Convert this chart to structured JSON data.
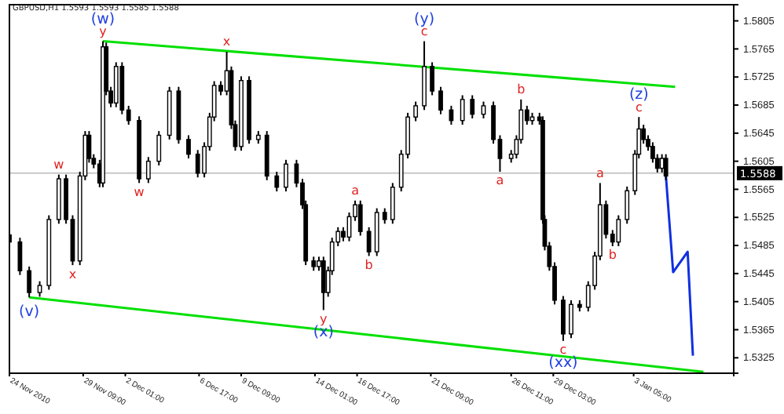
{
  "chart_data": {
    "type": "candlestick",
    "title": "GBPUSD,H1 1.5593 1.5593 1.5585 1.5588",
    "color": "#000000",
    "xlim": [
      "2010-11-24T17:00",
      "2011-01-09T13:00"
    ],
    "ylim": [
      1.5303,
      1.5828
    ],
    "xticks": [
      {
        "value": "2010-11-24T17:00",
        "label": "24 Nov 2010"
      },
      {
        "value": "2010-11-29T09:00",
        "label": "29 Nov 09:00"
      },
      {
        "value": "2010-12-02T01:00",
        "label": "2 Dec 01:00"
      },
      {
        "value": "2010-12-06T17:00",
        "label": "6 Dec 17:00"
      },
      {
        "value": "2010-12-09T09:00",
        "label": "9 Dec 09:00"
      },
      {
        "value": "2010-12-14T01:00",
        "label": "14 Dec 01:00"
      },
      {
        "value": "2010-12-16T17:00",
        "label": "16 Dec 17:00"
      },
      {
        "value": "2010-12-21T09:00",
        "label": "21 Dec 09:00"
      },
      {
        "value": "2010-12-26T11:00",
        "label": "26 Dec 11:00"
      },
      {
        "value": "2010-12-29T03:00",
        "label": "29 Dec 03:00"
      },
      {
        "value": "2011-01-03T05:00",
        "label": "3 Jan 05:00"
      }
    ],
    "yticks": [
      1.5325,
      1.5365,
      1.5405,
      1.5445,
      1.5485,
      1.5525,
      1.5565,
      1.5605,
      1.5645,
      1.5685,
      1.5725,
      1.5765,
      1.5805
    ],
    "x": [
      "2010-11-24T17:00",
      "2010-11-25T09:00",
      "2010-11-25T23:00",
      "2010-11-26T15:00",
      "2010-11-27T05:00",
      "2010-11-27T20:00",
      "2010-11-28T07:00",
      "2010-11-28T17:00",
      "2010-11-29T04:00",
      "2010-11-29T12:00",
      "2010-11-29T18:00",
      "2010-11-30T01:00",
      "2010-11-30T10:00",
      "2010-11-30T15:00",
      "2010-11-30T20:00",
      "2010-12-01T03:00",
      "2010-12-01T11:00",
      "2010-12-01T20:00",
      "2010-12-02T06:00",
      "2010-12-02T22:00",
      "2010-12-03T12:00",
      "2010-12-04T04:00",
      "2010-12-04T20:00",
      "2010-12-05T10:00",
      "2010-12-06T01:00",
      "2010-12-06T15:00",
      "2010-12-07T01:00",
      "2010-12-07T09:00",
      "2010-12-07T16:00",
      "2010-12-08T02:00",
      "2010-12-08T11:00",
      "2010-12-08T18:00",
      "2010-12-09T00:00",
      "2010-12-09T09:00",
      "2010-12-09T21:00",
      "2010-12-10T11:00",
      "2010-12-11T00:00",
      "2010-12-11T15:00",
      "2010-12-12T05:00",
      "2010-12-12T21:00",
      "2010-12-13T06:00",
      "2010-12-13T11:00",
      "2010-12-13T23:00",
      "2010-12-14T07:00",
      "2010-12-14T14:00",
      "2010-12-14T21:00",
      "2010-12-15T03:00",
      "2010-12-15T12:00",
      "2010-12-15T20:00",
      "2010-12-16T05:00",
      "2010-12-16T14:00",
      "2010-12-16T22:00",
      "2010-12-17T11:00",
      "2010-12-17T23:00",
      "2010-12-18T11:00",
      "2010-12-18T23:00",
      "2010-12-19T12:00",
      "2010-12-19T22:00",
      "2010-12-20T10:00",
      "2010-12-20T23:00",
      "2010-12-21T11:00",
      "2010-12-22T00:00",
      "2010-12-22T16:00",
      "2010-12-23T09:00",
      "2010-12-24T00:00",
      "2010-12-24T17:00",
      "2010-12-25T08:00",
      "2010-12-25T18:00",
      "2010-12-26T11:00",
      "2010-12-26T19:00",
      "2010-12-27T02:00",
      "2010-12-27T11:00",
      "2010-12-27T19:00",
      "2010-12-28T06:00",
      "2010-12-28T11:00",
      "2010-12-28T14:00",
      "2010-12-28T21:00",
      "2010-12-29T05:00",
      "2010-12-29T18:00",
      "2010-12-30T06:00",
      "2010-12-30T19:00",
      "2010-12-31T08:00",
      "2010-12-31T18:00",
      "2011-01-01T02:00",
      "2011-01-01T11:00",
      "2011-01-01T21:00",
      "2011-01-02T06:00",
      "2011-01-02T19:00",
      "2011-01-03T07:00",
      "2011-01-03T13:00",
      "2011-01-03T20:00",
      "2011-01-04T03:00",
      "2011-01-04T10:00",
      "2011-01-04T17:00",
      "2011-01-05T00:00",
      "2011-01-05T06:00"
    ],
    "ohlc": [
      [
        1.55,
        1.5506,
        1.5484,
        1.549
      ],
      [
        1.549,
        1.5496,
        1.5443,
        1.5449
      ],
      [
        1.5449,
        1.5455,
        1.5411,
        1.5418
      ],
      [
        1.5418,
        1.5434,
        1.5412,
        1.5428
      ],
      [
        1.5428,
        1.5528,
        1.5422,
        1.5522
      ],
      [
        1.5522,
        1.5586,
        1.5516,
        1.558
      ],
      [
        1.558,
        1.5586,
        1.5516,
        1.5522
      ],
      [
        1.5522,
        1.5528,
        1.5457,
        1.5463
      ],
      [
        1.5463,
        1.559,
        1.5457,
        1.5584
      ],
      [
        1.5584,
        1.5648,
        1.5578,
        1.5642
      ],
      [
        1.5642,
        1.5648,
        1.5603,
        1.5609
      ],
      [
        1.5609,
        1.5615,
        1.5595,
        1.5601
      ],
      [
        1.5601,
        1.5607,
        1.5568,
        1.5574
      ],
      [
        1.5574,
        1.5776,
        1.5568,
        1.5768
      ],
      [
        1.5768,
        1.5774,
        1.5699,
        1.5705
      ],
      [
        1.5705,
        1.5711,
        1.5682,
        1.5688
      ],
      [
        1.5688,
        1.5746,
        1.5682,
        1.574
      ],
      [
        1.574,
        1.5746,
        1.5672,
        1.5678
      ],
      [
        1.5678,
        1.5684,
        1.5657,
        1.5663
      ],
      [
        1.5663,
        1.5669,
        1.5574,
        1.558
      ],
      [
        1.558,
        1.5611,
        1.5574,
        1.5605
      ],
      [
        1.5605,
        1.5648,
        1.5599,
        1.5642
      ],
      [
        1.5642,
        1.5711,
        1.5636,
        1.5705
      ],
      [
        1.5705,
        1.5711,
        1.563,
        1.5636
      ],
      [
        1.5636,
        1.5642,
        1.5609,
        1.5615
      ],
      [
        1.5615,
        1.5621,
        1.5582,
        1.5588
      ],
      [
        1.5588,
        1.5632,
        1.5582,
        1.5626
      ],
      [
        1.5626,
        1.5674,
        1.562,
        1.5668
      ],
      [
        1.5668,
        1.5719,
        1.5662,
        1.5713
      ],
      [
        1.5713,
        1.5719,
        1.5699,
        1.5705
      ],
      [
        1.5705,
        1.5761,
        1.5699,
        1.5734
      ],
      [
        1.5734,
        1.574,
        1.5651,
        1.5657
      ],
      [
        1.5657,
        1.5663,
        1.562,
        1.5626
      ],
      [
        1.5626,
        1.5726,
        1.562,
        1.572
      ],
      [
        1.572,
        1.5726,
        1.563,
        1.5636
      ],
      [
        1.5636,
        1.5648,
        1.563,
        1.5642
      ],
      [
        1.5642,
        1.5648,
        1.5578,
        1.5584
      ],
      [
        1.5584,
        1.559,
        1.5562,
        1.5568
      ],
      [
        1.5568,
        1.5607,
        1.5562,
        1.5601
      ],
      [
        1.5601,
        1.5607,
        1.5568,
        1.5574
      ],
      [
        1.5574,
        1.558,
        1.5537,
        1.5543
      ],
      [
        1.5543,
        1.5549,
        1.5457,
        1.5463
      ],
      [
        1.5463,
        1.5469,
        1.5449,
        1.5455
      ],
      [
        1.5455,
        1.5469,
        1.5449,
        1.5463
      ],
      [
        1.5463,
        1.5469,
        1.5393,
        1.5418
      ],
      [
        1.5418,
        1.5455,
        1.5412,
        1.5449
      ],
      [
        1.5449,
        1.5496,
        1.5443,
        1.549
      ],
      [
        1.549,
        1.5511,
        1.5484,
        1.5505
      ],
      [
        1.5505,
        1.5511,
        1.5491,
        1.5497
      ],
      [
        1.5497,
        1.5532,
        1.5491,
        1.5526
      ],
      [
        1.5526,
        1.5549,
        1.552,
        1.5543
      ],
      [
        1.5543,
        1.5549,
        1.5499,
        1.5505
      ],
      [
        1.5505,
        1.5511,
        1.547,
        1.5476
      ],
      [
        1.5476,
        1.5538,
        1.547,
        1.5532
      ],
      [
        1.5532,
        1.5538,
        1.5516,
        1.5522
      ],
      [
        1.5522,
        1.5574,
        1.5516,
        1.5568
      ],
      [
        1.5568,
        1.5621,
        1.5562,
        1.5615
      ],
      [
        1.5615,
        1.5674,
        1.5609,
        1.5668
      ],
      [
        1.5668,
        1.569,
        1.5662,
        1.5684
      ],
      [
        1.5684,
        1.5776,
        1.5678,
        1.574
      ],
      [
        1.574,
        1.5746,
        1.5699,
        1.5705
      ],
      [
        1.5705,
        1.5711,
        1.5672,
        1.5678
      ],
      [
        1.5678,
        1.5684,
        1.5657,
        1.5663
      ],
      [
        1.5663,
        1.5699,
        1.5657,
        1.5693
      ],
      [
        1.5693,
        1.5699,
        1.5666,
        1.5672
      ],
      [
        1.5672,
        1.569,
        1.5666,
        1.5684
      ],
      [
        1.5684,
        1.569,
        1.563,
        1.5636
      ],
      [
        1.5636,
        1.5642,
        1.559,
        1.5609
      ],
      [
        1.5609,
        1.5621,
        1.5603,
        1.5615
      ],
      [
        1.5615,
        1.5642,
        1.5609,
        1.5636
      ],
      [
        1.5636,
        1.5693,
        1.563,
        1.5678
      ],
      [
        1.5678,
        1.5684,
        1.5657,
        1.5663
      ],
      [
        1.5663,
        1.5674,
        1.5657,
        1.5668
      ],
      [
        1.5668,
        1.5674,
        1.5657,
        1.5663
      ],
      [
        1.5663,
        1.5669,
        1.5516,
        1.5522
      ],
      [
        1.5522,
        1.5528,
        1.5478,
        1.5484
      ],
      [
        1.5484,
        1.549,
        1.5449,
        1.5455
      ],
      [
        1.5455,
        1.5461,
        1.5401,
        1.5407
      ],
      [
        1.5407,
        1.5413,
        1.5349,
        1.5359
      ],
      [
        1.5359,
        1.5407,
        1.5353,
        1.5401
      ],
      [
        1.5401,
        1.5407,
        1.5391,
        1.5397
      ],
      [
        1.5397,
        1.5434,
        1.5391,
        1.5428
      ],
      [
        1.5428,
        1.5476,
        1.5422,
        1.547
      ],
      [
        1.547,
        1.5574,
        1.5464,
        1.5543
      ],
      [
        1.5543,
        1.5549,
        1.5495,
        1.5501
      ],
      [
        1.5501,
        1.5507,
        1.5484,
        1.549
      ],
      [
        1.549,
        1.5528,
        1.5484,
        1.5522
      ],
      [
        1.5522,
        1.5569,
        1.5516,
        1.5563
      ],
      [
        1.5563,
        1.5621,
        1.5557,
        1.5615
      ],
      [
        1.5615,
        1.5668,
        1.5609,
        1.5651
      ],
      [
        1.5651,
        1.5657,
        1.563,
        1.5636
      ],
      [
        1.5636,
        1.5642,
        1.562,
        1.5626
      ],
      [
        1.5626,
        1.5632,
        1.5603,
        1.5609
      ],
      [
        1.5609,
        1.5615,
        1.5589,
        1.5595
      ],
      [
        1.5595,
        1.5615,
        1.5589,
        1.5609
      ],
      [
        1.5609,
        1.5615,
        1.5578,
        1.5584
      ]
    ],
    "series": [
      {
        "type": "line",
        "color": "#00e000",
        "x": [
          "2010-11-30T15:00",
          "2011-01-05T20:00"
        ],
        "values": [
          1.5776,
          1.5711
        ]
      },
      {
        "type": "line",
        "color": "#00e000",
        "x": [
          "2010-11-25T23:00",
          "2011-01-07T15:00"
        ],
        "values": [
          1.5411,
          1.5305
        ]
      },
      {
        "type": "line",
        "color": "#1030e0",
        "x": [
          "2011-01-05T06:00",
          "2011-01-05T17:00",
          "2011-01-06T15:00",
          "2011-01-06T23:00"
        ],
        "values": [
          1.5584,
          1.5447,
          1.5476,
          1.5328
        ]
      }
    ],
    "ref_lines": [
      {
        "axis": "y",
        "value": 1.5588,
        "label": "1.5588",
        "color": "#c8c8c8"
      }
    ],
    "annotations": [
      {
        "text": "w",
        "x": "2010-11-27T20:00",
        "y": 1.5586
      },
      {
        "text": "x",
        "x": "2010-11-28T17:00",
        "y": 1.5457
      },
      {
        "text": "y",
        "x": "2010-11-30T15:00",
        "y": 1.5776
      },
      {
        "text": "(w)",
        "x": "2010-11-30T15:00",
        "y": 1.5776
      },
      {
        "text": "w",
        "x": "2010-12-02T22:00",
        "y": 1.5574
      },
      {
        "text": "x",
        "x": "2010-12-08T11:00",
        "y": 1.5761
      },
      {
        "text": "y",
        "x": "2010-12-14T14:00",
        "y": 1.5393
      },
      {
        "text": "(x)",
        "x": "2010-12-14T14:00",
        "y": 1.5393
      },
      {
        "text": "a",
        "x": "2010-12-16T14:00",
        "y": 1.5549
      },
      {
        "text": "b",
        "x": "2010-12-17T11:00",
        "y": 1.547
      },
      {
        "text": "c",
        "x": "2010-12-20T23:00",
        "y": 1.5776
      },
      {
        "text": "(y)",
        "x": "2010-12-20T23:00",
        "y": 1.5776
      },
      {
        "text": "a",
        "x": "2010-12-25T18:00",
        "y": 1.559
      },
      {
        "text": "b",
        "x": "2010-12-27T02:00",
        "y": 1.5693
      },
      {
        "text": "c",
        "x": "2010-12-29T18:00",
        "y": 1.5349
      },
      {
        "text": "(xx)",
        "x": "2010-12-29T18:00",
        "y": 1.5349
      },
      {
        "text": "a",
        "x": "2011-01-01T02:00",
        "y": 1.5574
      },
      {
        "text": "b",
        "x": "2011-01-01T21:00",
        "y": 1.5484
      },
      {
        "text": "c",
        "x": "2011-01-03T13:00",
        "y": 1.5668
      },
      {
        "text": "(z)",
        "x": "2011-01-03T13:00",
        "y": 1.5668
      },
      {
        "text": "(v)",
        "x": "2010-11-25T23:00",
        "y": 1.5411
      }
    ]
  }
}
